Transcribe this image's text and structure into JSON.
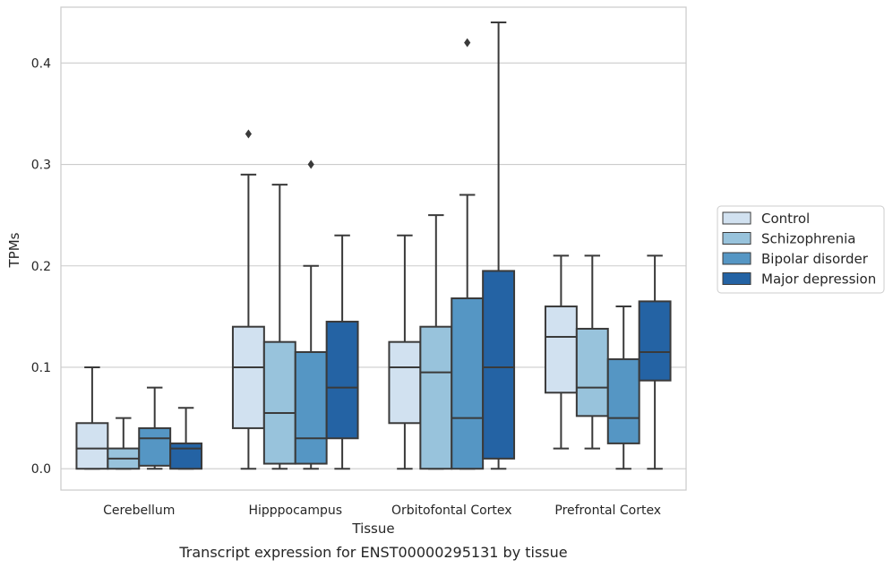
{
  "chart_data": {
    "type": "box",
    "title": "",
    "xlabel": "Tissue",
    "ylabel": "TPMs",
    "caption": "Transcript expression for ENST00000295131 by tissue",
    "ylim": [
      -0.021,
      0.455
    ],
    "yticks": [
      "0.0",
      "0.1",
      "0.2",
      "0.3",
      "0.4"
    ],
    "grid": "horizontal",
    "legend_position": "right",
    "categories": [
      "Cerebellum",
      "Hipppocampus",
      "Orbitofontal Cortex",
      "Prefrontal Cortex"
    ],
    "series": [
      {
        "name": "Control",
        "color": "#d1e1f0",
        "boxes": [
          {
            "whislo": 0.0,
            "q1": 0.0,
            "med": 0.02,
            "q3": 0.045,
            "whishi": 0.1,
            "fliers": []
          },
          {
            "whislo": 0.0,
            "q1": 0.04,
            "med": 0.1,
            "q3": 0.14,
            "whishi": 0.29,
            "fliers": [
              0.33
            ]
          },
          {
            "whislo": 0.0,
            "q1": 0.045,
            "med": 0.1,
            "q3": 0.125,
            "whishi": 0.23,
            "fliers": []
          },
          {
            "whislo": 0.02,
            "q1": 0.075,
            "med": 0.13,
            "q3": 0.16,
            "whishi": 0.21,
            "fliers": []
          }
        ]
      },
      {
        "name": "Schizophrenia",
        "color": "#98c3dc",
        "boxes": [
          {
            "whislo": 0.0,
            "q1": 0.0,
            "med": 0.01,
            "q3": 0.02,
            "whishi": 0.05,
            "fliers": []
          },
          {
            "whislo": 0.0,
            "q1": 0.005,
            "med": 0.055,
            "q3": 0.125,
            "whishi": 0.28,
            "fliers": []
          },
          {
            "whislo": 0.0,
            "q1": 0.0,
            "med": 0.095,
            "q3": 0.14,
            "whishi": 0.25,
            "fliers": []
          },
          {
            "whislo": 0.02,
            "q1": 0.052,
            "med": 0.08,
            "q3": 0.138,
            "whishi": 0.21,
            "fliers": []
          }
        ]
      },
      {
        "name": "Bipolar disorder",
        "color": "#5596c4",
        "boxes": [
          {
            "whislo": 0.0,
            "q1": 0.003,
            "med": 0.03,
            "q3": 0.04,
            "whishi": 0.08,
            "fliers": []
          },
          {
            "whislo": 0.0,
            "q1": 0.005,
            "med": 0.03,
            "q3": 0.115,
            "whishi": 0.2,
            "fliers": [
              0.3
            ]
          },
          {
            "whislo": 0.0,
            "q1": 0.0,
            "med": 0.05,
            "q3": 0.168,
            "whishi": 0.27,
            "fliers": [
              0.42
            ]
          },
          {
            "whislo": 0.0,
            "q1": 0.025,
            "med": 0.05,
            "q3": 0.108,
            "whishi": 0.16,
            "fliers": []
          }
        ]
      },
      {
        "name": "Major depression",
        "color": "#2463a4",
        "boxes": [
          {
            "whislo": 0.0,
            "q1": 0.0,
            "med": 0.02,
            "q3": 0.025,
            "whishi": 0.06,
            "fliers": []
          },
          {
            "whislo": 0.0,
            "q1": 0.03,
            "med": 0.08,
            "q3": 0.145,
            "whishi": 0.23,
            "fliers": []
          },
          {
            "whislo": 0.0,
            "q1": 0.01,
            "med": 0.1,
            "q3": 0.195,
            "whishi": 0.44,
            "fliers": []
          },
          {
            "whislo": 0.0,
            "q1": 0.087,
            "med": 0.115,
            "q3": 0.165,
            "whishi": 0.21,
            "fliers": []
          }
        ]
      }
    ],
    "colors": {
      "edge": "#3a3a3a",
      "grid": "#cccccc",
      "frame": "#cccccc",
      "text": "#262626"
    }
  }
}
